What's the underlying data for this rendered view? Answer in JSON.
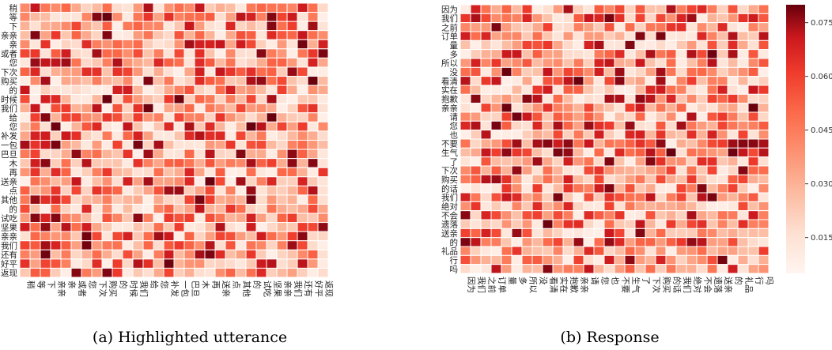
{
  "colors": {
    "low": "#fff5f0",
    "high": "#67000d",
    "cell_border": "#ffffff"
  },
  "chart_data": [
    {
      "type": "heatmap",
      "caption": "(a)  Highlighted utterance",
      "labels": [
        "稍",
        "等",
        "下",
        "亲亲",
        "亲",
        "或者",
        "您",
        "下次",
        "购买",
        "的",
        "时候",
        "我们",
        "给",
        "您",
        "补发",
        "一包",
        "巴旦",
        "木",
        "再",
        "送亲",
        "点",
        "其他",
        "的",
        "试吃",
        "坚果",
        "亲亲",
        "我们",
        "还有",
        "好平",
        "返现"
      ],
      "colorbar": false
    },
    {
      "type": "heatmap",
      "caption": "(b)  Response",
      "labels": [
        "因为",
        "我们",
        "之前",
        "订单",
        "量",
        "多",
        "所以",
        "没",
        "看清",
        "实在",
        "抱歉",
        "亲亲",
        "请",
        "您",
        "也",
        "不要",
        "生气",
        "了",
        "下次",
        "购买",
        "的话",
        "我们",
        "绝对",
        "不会",
        "遗落",
        "送亲",
        "的",
        "礼品",
        "行",
        "吗"
      ],
      "colorbar": true,
      "colorbar_range": [
        0.005,
        0.08
      ],
      "colorbar_ticks": [
        "0.015",
        "0.030",
        "0.045",
        "0.060",
        "0.075"
      ]
    }
  ]
}
